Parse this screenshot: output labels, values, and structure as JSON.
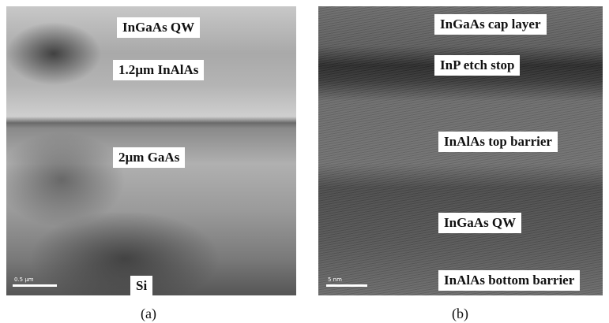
{
  "panels": [
    {
      "labels": [
        "InGaAs QW",
        "1.2µm InAlAs",
        "2µm GaAs",
        "Si"
      ],
      "scale_bar": "0.5 µm",
      "caption": "(a)"
    },
    {
      "labels": [
        "InGaAs cap layer",
        "InP etch stop",
        "InAlAs top barrier",
        "InGaAs QW",
        "InAlAs bottom barrier"
      ],
      "scale_bar": "5 nm",
      "caption": "(b)"
    }
  ]
}
